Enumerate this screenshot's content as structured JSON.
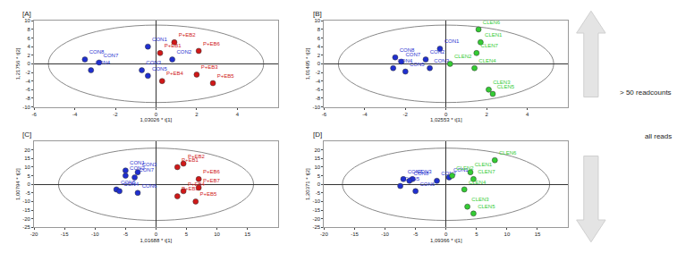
{
  "chart_data": [
    {
      "type": "scatter",
      "title": "[A]",
      "x_label": "1,03026 * t[1]",
      "y_label": "1,21756 * t[2]",
      "xlim": [
        -6,
        6
      ],
      "xticks": [
        -6,
        -4,
        -2,
        0,
        2,
        4
      ],
      "ylim": [
        -10,
        10
      ],
      "yticks": [
        -10,
        -8,
        -6,
        -4,
        -2,
        0,
        2,
        4,
        6,
        8,
        10
      ],
      "ellipse_radii": [
        5.3,
        9
      ],
      "series": [
        {
          "color": "#1f2fd0",
          "labels": [
            "CON8",
            "CON7",
            "CON4",
            "CON1",
            "CON3",
            "CON5",
            "CON2"
          ],
          "x": [
            -3.5,
            -2.8,
            -3.2,
            -0.4,
            -0.7,
            -0.4,
            0.8
          ],
          "y": [
            1,
            0.3,
            -1.5,
            4,
            -1.5,
            -2.8,
            1
          ]
        },
        {
          "color": "#d01818",
          "labels": [
            "P+EB1",
            "P+EB2",
            "P+EB6",
            "P+EB3",
            "P+EB4",
            "P+EB5"
          ],
          "x": [
            0.2,
            0.9,
            2.1,
            2.0,
            0.3,
            2.8
          ],
          "y": [
            2.5,
            5,
            3,
            -2.5,
            -4,
            -4.5
          ]
        }
      ]
    },
    {
      "type": "scatter",
      "title": "[B]",
      "x_label": "1,02553 * t[1]",
      "y_label": "1,01495 * t[2]",
      "xlim": [
        -6,
        6
      ],
      "xticks": [
        -6,
        -4,
        -2,
        0,
        2,
        4
      ],
      "ylim": [
        -10,
        10
      ],
      "yticks": [
        -10,
        -8,
        -6,
        -4,
        -2,
        0,
        2,
        4,
        6,
        8,
        10
      ],
      "ellipse_radii": [
        5.3,
        9
      ],
      "series": [
        {
          "color": "#1f2fd0",
          "labels": [
            "CON8",
            "CON7",
            "CON4",
            "CON5",
            "CON2",
            "CON3",
            "CON1"
          ],
          "x": [
            -2.5,
            -2.2,
            -2.6,
            -2.0,
            -1.0,
            -0.8,
            -0.3
          ],
          "y": [
            1.5,
            0.5,
            -1,
            -1.8,
            1,
            -1,
            3.5
          ]
        },
        {
          "color": "#33cc33",
          "labels": [
            "CLEN2",
            "CLEN6",
            "CLEN1",
            "CLEN7",
            "CLEN4",
            "CLEN3",
            "CLEN5"
          ],
          "x": [
            0.2,
            1.6,
            1.7,
            1.5,
            1.4,
            2.1,
            2.3
          ],
          "y": [
            0,
            8,
            5,
            2.5,
            -1,
            -6,
            -7
          ]
        }
      ]
    },
    {
      "type": "scatter",
      "title": "[C]",
      "x_label": "1,01688 * t[1]",
      "y_label": "1,00794 * t[2]",
      "xlim": [
        -20,
        20
      ],
      "xticks": [
        -20,
        -15,
        -10,
        -5,
        0,
        5,
        10,
        15
      ],
      "ylim": [
        -25,
        25
      ],
      "yticks": [
        -25,
        -20,
        -15,
        -10,
        -5,
        0,
        5,
        10,
        15,
        20
      ],
      "ellipse_radii": [
        16,
        21
      ],
      "series": [
        {
          "color": "#1f2fd0",
          "labels": [
            "CON1",
            "CON3",
            "CON2",
            "CON7",
            "CON5",
            "CON4",
            "CON6"
          ],
          "x": [
            -5,
            -3,
            -5,
            -3.5,
            -6.5,
            -6,
            -3
          ],
          "y": [
            8,
            7,
            5,
            4,
            -3,
            -4,
            -5
          ]
        },
        {
          "color": "#d01818",
          "labels": [
            "P+EB2",
            "P+EB1",
            "P+EB6",
            "P+EB7",
            "P+EB4",
            "P+EB3",
            "P+EB5"
          ],
          "x": [
            4.5,
            3.5,
            7,
            7,
            4.5,
            3.5,
            6.5
          ],
          "y": [
            12,
            10,
            3,
            -2,
            -4,
            -7,
            -10
          ]
        }
      ]
    },
    {
      "type": "scatter",
      "title": "[D]",
      "x_label": "1,09366 * t[1]",
      "y_label": "1,20371 * t[2]",
      "xlim": [
        -20,
        20
      ],
      "xticks": [
        -20,
        -15,
        -10,
        -5,
        0,
        5,
        10,
        15
      ],
      "ylim": [
        -25,
        25
      ],
      "yticks": [
        -25,
        -20,
        -15,
        -10,
        -5,
        0,
        5,
        10,
        15,
        20
      ],
      "ellipse_radii": [
        17,
        21
      ],
      "series": [
        {
          "color": "#1f2fd0",
          "labels": [
            "CON7",
            "CON3",
            "CON8",
            "CON5",
            "CON6",
            "CON2",
            "CON1"
          ],
          "x": [
            -7,
            -5.5,
            -6,
            -7.5,
            -5,
            -1.5,
            0.5
          ],
          "y": [
            3,
            3,
            2,
            -1,
            -4,
            2,
            4
          ]
        },
        {
          "color": "#33cc33",
          "labels": [
            "CLEN2",
            "CLEN1",
            "CLEN6",
            "CLEN7",
            "CLEN4",
            "CLEN3",
            "CLEN5"
          ],
          "x": [
            1,
            4,
            8,
            4.5,
            3,
            3.5,
            4.5
          ],
          "y": [
            5,
            7,
            14,
            3,
            -3,
            -13,
            -17
          ]
        }
      ]
    }
  ],
  "row_labels": [
    "> 50 readcounts",
    "all reads"
  ]
}
